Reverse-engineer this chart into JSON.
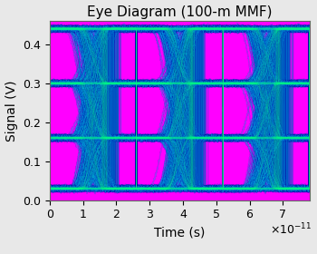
{
  "title": "Eye Diagram (100-m MMF)",
  "xlabel": "Time (s)",
  "ylabel": "Signal (V)",
  "xlim": [
    0,
    7.8e-11
  ],
  "ylim": [
    0,
    0.46
  ],
  "xticks": [
    0,
    1e-11,
    2e-11,
    3e-11,
    4e-11,
    5e-11,
    6e-11,
    7e-11
  ],
  "xtick_labels": [
    "0",
    "1",
    "2",
    "3",
    "4",
    "5",
    "6",
    "7"
  ],
  "yticks": [
    0.0,
    0.1,
    0.2,
    0.3,
    0.4
  ],
  "background_color": "#FF00FF",
  "trace_color_dark": "#0000AA",
  "trace_color_mid": "#00AAFF",
  "trace_color_bright": "#00FFFF",
  "highlight_color": "#00FF88",
  "title_fontsize": 11,
  "label_fontsize": 10,
  "tick_fontsize": 9,
  "bit_period": 2.6e-11,
  "num_periods": 3,
  "signal_levels": [
    0.03,
    0.16,
    0.3,
    0.44
  ],
  "rise_time_factor": 0.35,
  "jitter_sigma": 0.05,
  "noise_sigma": 0.003,
  "num_traces": 800,
  "pts_per_trace": 1500
}
